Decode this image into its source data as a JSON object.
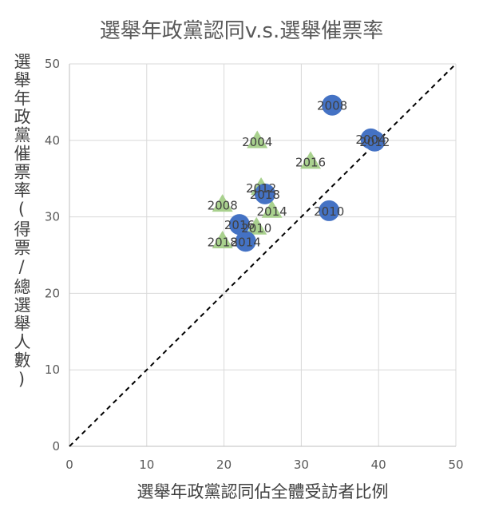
{
  "chart_data": {
    "type": "scatter",
    "title": "選舉年政黨認同v.s.選舉催票率",
    "xlabel": "選舉年政黨認同佔全體受訪者比例",
    "ylabel": "選舉年政黨催票率(得票/總選舉人數)",
    "xlim": [
      0,
      50
    ],
    "ylim": [
      0,
      50
    ],
    "xticks": [
      0,
      10,
      20,
      30,
      40,
      50
    ],
    "yticks": [
      0,
      10,
      20,
      30,
      40,
      50
    ],
    "grid": true,
    "legend": "none",
    "reference_line": {
      "style": "dashed",
      "color": "#000000",
      "points": [
        [
          0,
          0
        ],
        [
          50,
          50
        ]
      ]
    },
    "series": [
      {
        "marker": "circle",
        "color": "#4472C4",
        "points": [
          {
            "x": 34.0,
            "y": 44.6,
            "label": "2008"
          },
          {
            "x": 39.0,
            "y": 40.2,
            "label": "2004"
          },
          {
            "x": 39.5,
            "y": 39.9,
            "label": "2012"
          },
          {
            "x": 25.3,
            "y": 33.0,
            "label": "2018"
          },
          {
            "x": 33.6,
            "y": 30.8,
            "label": "2010"
          },
          {
            "x": 22.0,
            "y": 29.0,
            "label": "2016"
          },
          {
            "x": 22.8,
            "y": 26.8,
            "label": "2014"
          }
        ]
      },
      {
        "marker": "triangle",
        "color": "#A9D18E",
        "points": [
          {
            "x": 24.3,
            "y": 39.9,
            "label": "2004"
          },
          {
            "x": 31.2,
            "y": 37.2,
            "label": "2016"
          },
          {
            "x": 24.8,
            "y": 33.8,
            "label": "2012"
          },
          {
            "x": 19.8,
            "y": 31.6,
            "label": "2008"
          },
          {
            "x": 26.2,
            "y": 30.8,
            "label": "2014"
          },
          {
            "x": 24.2,
            "y": 28.6,
            "label": "2010"
          },
          {
            "x": 19.8,
            "y": 26.8,
            "label": "2018"
          }
        ]
      }
    ]
  }
}
